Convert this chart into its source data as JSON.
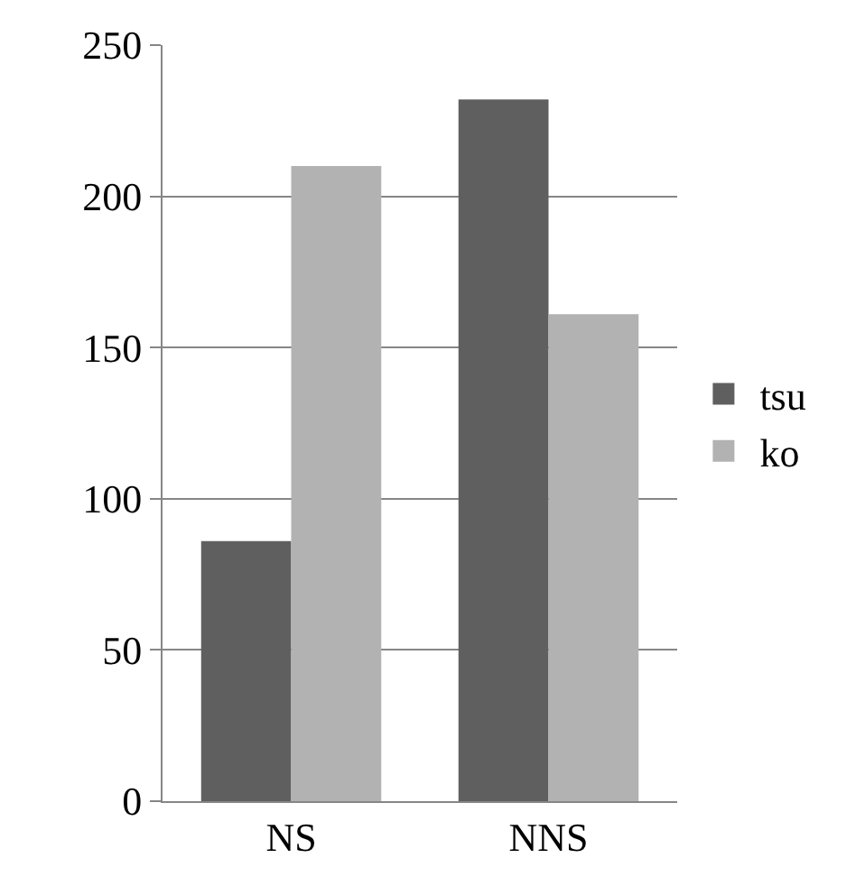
{
  "chart_data": {
    "type": "bar",
    "categories": [
      "NS",
      "NNS"
    ],
    "series": [
      {
        "name": "tsu",
        "color": "#5f5f5f",
        "values": [
          86,
          232
        ]
      },
      {
        "name": "ko",
        "color": "#b2b2b2",
        "values": [
          210,
          161
        ]
      }
    ],
    "ylim": [
      0,
      250
    ],
    "yticks": [
      0,
      50,
      100,
      150,
      200,
      250
    ],
    "grid": "y",
    "legend": "right"
  }
}
